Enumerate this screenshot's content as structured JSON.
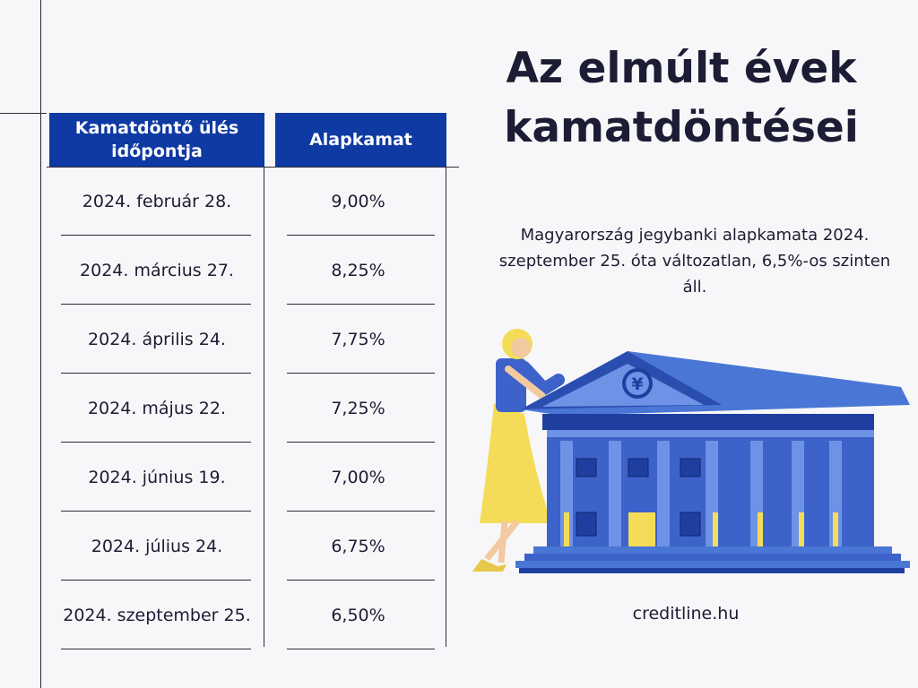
{
  "title_line1": "Az elmúlt évek",
  "title_line2": "kamatdöntései",
  "subtitle": "Magyarország jegybanki alapkamata 2024. szeptember 25. óta változatlan, 6,5%-os szinten áll.",
  "website": "creditline.hu",
  "table": {
    "header_date": "Kamatdöntő ülés időpontja",
    "header_rate": "Alapkamat",
    "rows": [
      {
        "date": "2024. február 28.",
        "rate": "9,00%"
      },
      {
        "date": "2024. március 27.",
        "rate": "8,25%"
      },
      {
        "date": "2024. április 24.",
        "rate": "7,75%"
      },
      {
        "date": "2024. május 22.",
        "rate": "7,25%"
      },
      {
        "date": "2024. június 19.",
        "rate": "7,00%"
      },
      {
        "date": "2024. július 24.",
        "rate": "6,75%"
      },
      {
        "date": "2024. szeptember 25.",
        "rate": "6,50%"
      }
    ]
  },
  "illustration": {
    "symbol": "¥",
    "colors": {
      "building": "#3d62c9",
      "roof": "#4a76d6",
      "dark": "#1f3fa0",
      "skirt": "#f5dc58",
      "accent_header": "#0f3aa3"
    }
  }
}
